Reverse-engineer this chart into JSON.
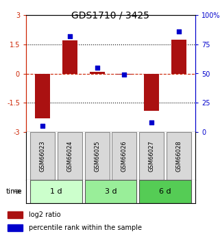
{
  "title": "GDS1710 / 3425",
  "samples": [
    "GSM66023",
    "GSM66024",
    "GSM66025",
    "GSM66026",
    "GSM66027",
    "GSM66028"
  ],
  "log2_ratio": [
    -2.3,
    1.7,
    0.1,
    -0.05,
    -1.9,
    1.75
  ],
  "percentile_rank": [
    5,
    82,
    55,
    49,
    8,
    86
  ],
  "groups": [
    {
      "label": "1 d",
      "samples": [
        0,
        1
      ],
      "color": "#ccffcc"
    },
    {
      "label": "3 d",
      "samples": [
        2,
        3
      ],
      "color": "#99ee99"
    },
    {
      "label": "6 d",
      "samples": [
        4,
        5
      ],
      "color": "#55cc55"
    }
  ],
  "bar_color": "#aa1111",
  "dot_color": "#0000cc",
  "left_axis_color": "#cc2200",
  "right_axis_color": "#0000cc",
  "ylim_left": [
    -3,
    3
  ],
  "ylim_right": [
    0,
    100
  ],
  "yticks_left": [
    -3,
    -1.5,
    0,
    1.5,
    3
  ],
  "ytick_labels_left": [
    "-3",
    "-1.5",
    "0",
    "1.5",
    "3"
  ],
  "yticks_right": [
    0,
    25,
    50,
    75,
    100
  ],
  "ytick_labels_right": [
    "0",
    "25",
    "50",
    "75",
    "100%"
  ],
  "hlines": [
    -1.5,
    0,
    1.5
  ],
  "hline_styles": [
    "dotted",
    "dashed",
    "dotted"
  ],
  "hline_colors": [
    "black",
    "#cc2200",
    "black"
  ],
  "bar_width": 0.55,
  "legend_items": [
    {
      "color": "#aa1111",
      "label": "log2 ratio"
    },
    {
      "color": "#0000cc",
      "label": "percentile rank within the sample"
    }
  ],
  "group_colors_light": [
    "#ccffcc",
    "#99ee99",
    "#55cc55"
  ]
}
